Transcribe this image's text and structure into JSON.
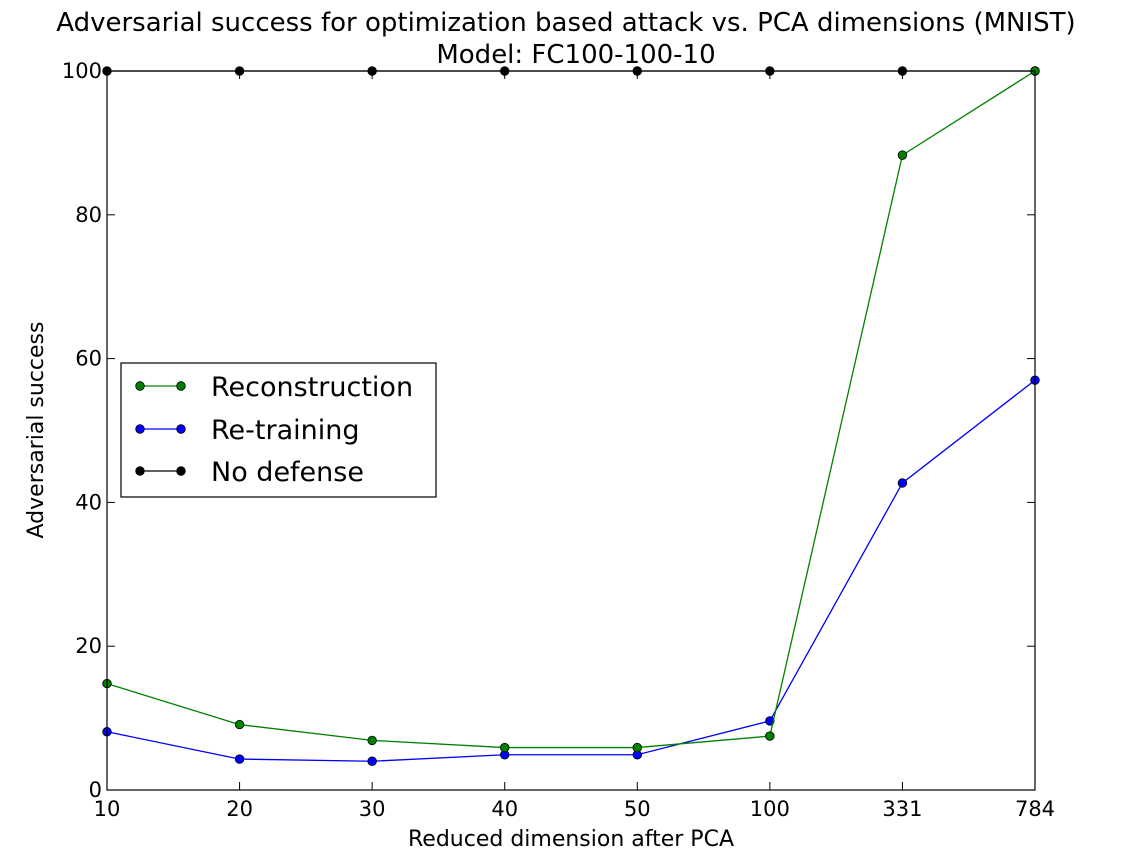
{
  "chart_data": {
    "type": "line",
    "title": "Adversarial success for optimization based attack vs. PCA dimensions (MNIST)",
    "subtitle": "Model: FC100-100-10",
    "xlabel": "Reduced dimension after PCA",
    "ylabel": "Adversarial success",
    "categories": [
      "10",
      "20",
      "30",
      "40",
      "50",
      "100",
      "331",
      "784"
    ],
    "ylim": [
      0,
      100
    ],
    "yticks": [
      "0",
      "20",
      "40",
      "60",
      "80",
      "100"
    ],
    "grid": false,
    "legend_position": "center-left",
    "series": [
      {
        "name": "Reconstruction",
        "color": "#008000",
        "values": [
          14.8,
          9.1,
          6.9,
          5.9,
          5.9,
          7.5,
          88.3,
          100
        ]
      },
      {
        "name": "Re-training",
        "color": "#0000ff",
        "values": [
          8.1,
          4.3,
          4.0,
          4.9,
          4.9,
          9.6,
          42.7,
          57.0
        ]
      },
      {
        "name": "No defense",
        "color": "#000000",
        "values": [
          100,
          100,
          100,
          100,
          100,
          100,
          100,
          100
        ]
      }
    ]
  }
}
